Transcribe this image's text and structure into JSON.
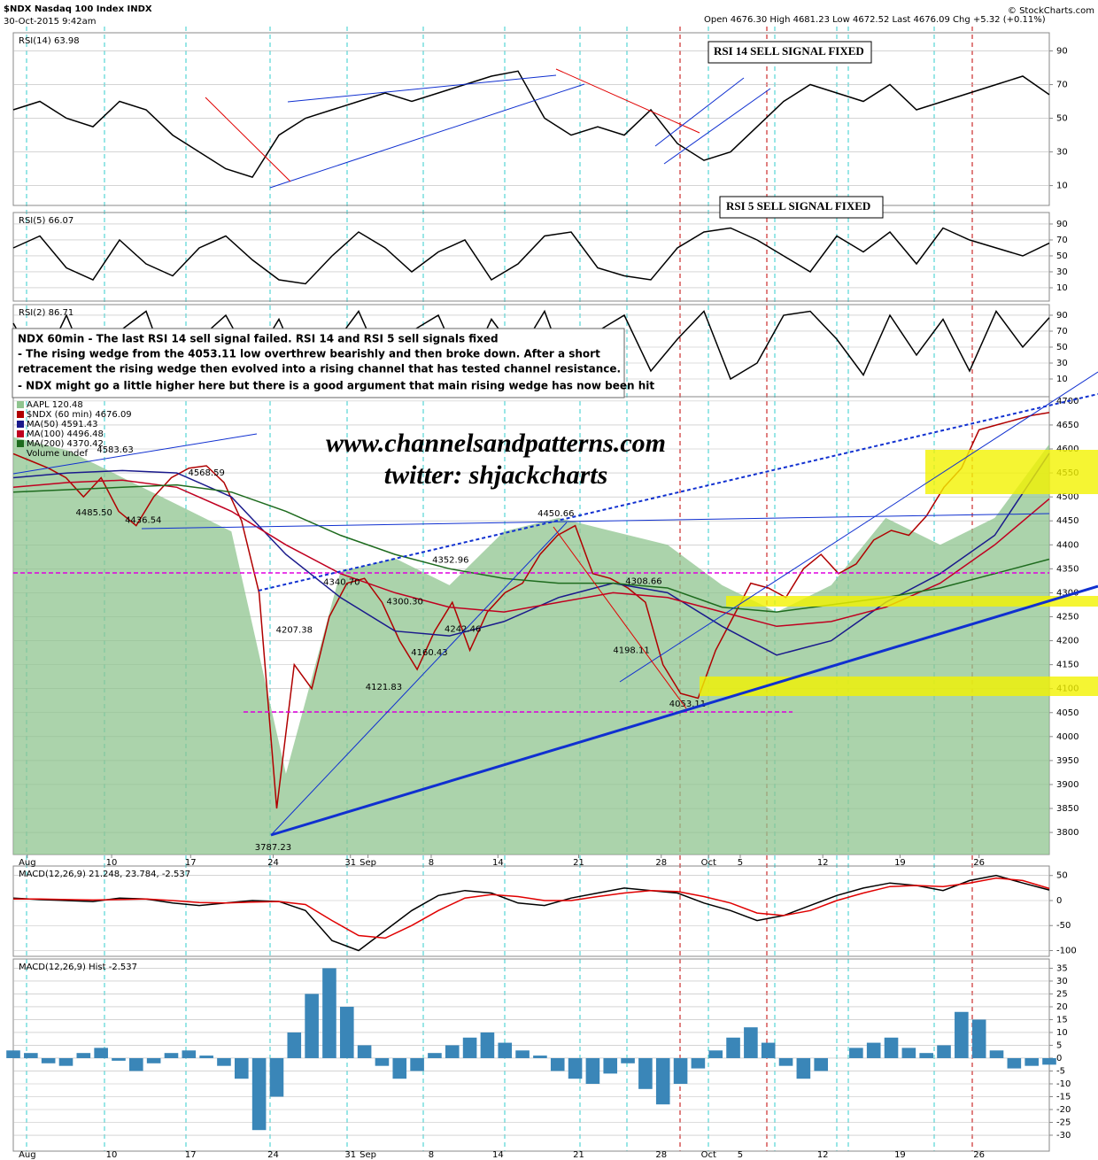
{
  "header": {
    "title": "$NDX Nasdaq 100 Index INDX",
    "timestamp": "30-Oct-2015 9:42am",
    "quote": "Open 4676.30  High 4681.23  Low 4672.52  Last 4676.09  Chg +5.32 (+0.11%)",
    "brand": "© StockCharts.com"
  },
  "notes": {
    "rsi14": "RSI 14 SELL SIGNAL FIXED",
    "rsi5": "RSI 5 SELL SIGNAL FIXED",
    "box": [
      "NDX 60min - The last RSI 14 sell signal failed. RSI 14 and RSI 5 sell signals fixed",
      "- The rising wedge from the 4053.11 low overthrew bearishly and then broke down. After a short",
      "retracement the rising wedge then evolved into a rising channel that has tested channel resistance.",
      "- NDX might go a little higher here but there is a good argument that main rising wedge has now been hit"
    ],
    "website": "www.channelsandpatterns.com",
    "twitter": "twitter: shjackcharts"
  },
  "chart_data": [
    {
      "type": "line",
      "title": "RSI(14) 63.98",
      "color": "#000000",
      "ylim": [
        -1.8,
        100.8
      ],
      "yticks": [
        10,
        30,
        50,
        70,
        90
      ],
      "grid": true,
      "values": [
        55,
        60,
        50,
        45,
        60,
        55,
        40,
        30,
        20,
        15,
        40,
        50,
        55,
        60,
        65,
        60,
        65,
        70,
        75,
        78,
        50,
        40,
        45,
        40,
        55,
        35,
        25,
        30,
        45,
        60,
        70,
        65,
        60,
        70,
        55,
        60,
        65,
        70,
        75,
        64
      ]
    },
    {
      "type": "line",
      "title": "RSI(5) 66.07",
      "color": "#000000",
      "ylim": [
        -6.7,
        104.4
      ],
      "yticks": [
        10,
        30,
        50,
        70,
        90
      ],
      "grid": true,
      "values": [
        60,
        75,
        35,
        20,
        70,
        40,
        25,
        60,
        75,
        45,
        20,
        15,
        50,
        80,
        60,
        30,
        55,
        70,
        20,
        40,
        75,
        80,
        35,
        25,
        20,
        60,
        80,
        85,
        70,
        50,
        30,
        75,
        55,
        80,
        40,
        85,
        70,
        60,
        50,
        66
      ]
    },
    {
      "type": "line",
      "title": "RSI(2) 86.71",
      "color": "#000000",
      "ylim": [
        -12.2,
        103.3
      ],
      "yticks": [
        10,
        30,
        50,
        70,
        90
      ],
      "grid": true,
      "values": [
        80,
        20,
        90,
        10,
        70,
        95,
        5,
        60,
        90,
        30,
        85,
        10,
        50,
        95,
        20,
        70,
        90,
        15,
        85,
        40,
        95,
        5,
        70,
        90,
        20,
        60,
        95,
        10,
        30,
        90,
        95,
        60,
        15,
        90,
        40,
        85,
        20,
        95,
        50,
        87
      ]
    },
    {
      "type": "line",
      "ylim": [
        3754,
        4709
      ],
      "y2lim": [
        90,
        124
      ],
      "grid": true,
      "xlim": [
        0,
        59
      ],
      "yticks": [
        3800,
        3850,
        3900,
        3950,
        4000,
        4050,
        4100,
        4150,
        4200,
        4250,
        4300,
        4350,
        4400,
        4450,
        4500,
        4550,
        4600,
        4650,
        4700
      ],
      "xticks": [
        {
          "value": 0.8,
          "label": "Aug"
        },
        {
          "value": 5.6,
          "label": "10"
        },
        {
          "value": 10.1,
          "label": "17"
        },
        {
          "value": 14.8,
          "label": "24"
        },
        {
          "value": 19.2,
          "label": "31"
        },
        {
          "value": 20.2,
          "label": "Sep"
        },
        {
          "value": 23.8,
          "label": "8"
        },
        {
          "value": 27.6,
          "label": "14"
        },
        {
          "value": 32.2,
          "label": "21"
        },
        {
          "value": 36.9,
          "label": "28"
        },
        {
          "value": 39.6,
          "label": "Oct"
        },
        {
          "value": 41.4,
          "label": "5"
        },
        {
          "value": 46.1,
          "label": "12"
        },
        {
          "value": 50.5,
          "label": "19"
        },
        {
          "value": 55.0,
          "label": "26"
        }
      ],
      "series": [
        {
          "name": "AAPL 120.48",
          "color": "#8fc48f",
          "axis": "y2",
          "style": "area",
          "values": [
            121,
            120,
            118,
            116,
            114,
            96,
            111,
            112,
            110,
            114,
            115,
            114,
            113,
            110,
            108,
            110,
            115,
            113,
            115,
            120.48
          ]
        },
        {
          "name": "$NDX (60 min) 4676.09",
          "color": "#b00000",
          "values": [
            4590,
            4575,
            4560,
            4540,
            4500,
            4540,
            4470,
            4440,
            4500,
            4540,
            4560,
            4565,
            4530,
            4450,
            4300,
            3850,
            4150,
            4100,
            4250,
            4320,
            4330,
            4280,
            4200,
            4140,
            4220,
            4280,
            4180,
            4260,
            4300,
            4320,
            4380,
            4420,
            4440,
            4340,
            4330,
            4310,
            4280,
            4150,
            4090,
            4080,
            4180,
            4250,
            4320,
            4310,
            4290,
            4350,
            4380,
            4340,
            4360,
            4410,
            4430,
            4420,
            4460,
            4520,
            4560,
            4640,
            4650,
            4660,
            4670,
            4676
          ]
        },
        {
          "name": "MA(50) 4591.43",
          "color": "#1a1a8c",
          "values": [
            4540,
            4550,
            4555,
            4550,
            4500,
            4380,
            4290,
            4220,
            4210,
            4240,
            4290,
            4320,
            4300,
            4230,
            4170,
            4200,
            4280,
            4340,
            4420,
            4591
          ]
        },
        {
          "name": "MA(100) 4496.48",
          "color": "#c00020",
          "values": [
            4520,
            4530,
            4535,
            4520,
            4470,
            4400,
            4340,
            4300,
            4270,
            4260,
            4280,
            4300,
            4290,
            4260,
            4230,
            4240,
            4270,
            4320,
            4400,
            4496
          ]
        },
        {
          "name": "MA(200) 4370.42",
          "color": "#1e6b1e",
          "values": [
            4510,
            4515,
            4520,
            4525,
            4510,
            4470,
            4420,
            4380,
            4350,
            4330,
            4320,
            4320,
            4310,
            4270,
            4260,
            4275,
            4290,
            4310,
            4340,
            4370
          ]
        }
      ],
      "legend_texts": [
        "Volume undef"
      ],
      "point_labels": [
        {
          "x": 5.8,
          "value": 4583.63
        },
        {
          "x": 4.6,
          "value": 4485.5,
          "label": "4485.50"
        },
        {
          "x": 7.4,
          "value": 4436.54
        },
        {
          "x": 11.0,
          "value": 4568.59
        },
        {
          "x": 30.9,
          "value": 4450.66
        },
        {
          "x": 18.7,
          "value": 4340.7,
          "label": "4340.70"
        },
        {
          "x": 24.9,
          "value": 4352.96
        },
        {
          "x": 22.3,
          "value": 4300.3,
          "label": "4300.30"
        },
        {
          "x": 16.0,
          "value": 4207.38
        },
        {
          "x": 25.6,
          "value": 4242.46
        },
        {
          "x": 35.9,
          "value": 4308.66
        },
        {
          "x": 35.2,
          "value": 4198.11
        },
        {
          "x": 23.7,
          "value": 4160.43
        },
        {
          "x": 21.1,
          "value": 4121.83
        },
        {
          "x": 38.4,
          "value": 4053.11
        },
        {
          "x": 14.8,
          "value": 3787.23
        }
      ]
    },
    {
      "type": "line",
      "title": "MACD(12,26,9) 21.248, 23.784, -2.537",
      "ylim": [
        -111.5,
        69
      ],
      "yticks": [
        -100,
        -50,
        0,
        50
      ],
      "grid": true,
      "series": [
        {
          "color": "#000000",
          "values": [
            5,
            2,
            0,
            -2,
            5,
            3,
            -5,
            -10,
            -5,
            0,
            -2,
            -20,
            -80,
            -100,
            -60,
            -20,
            10,
            20,
            15,
            -5,
            -10,
            5,
            15,
            25,
            20,
            15,
            -5,
            -20,
            -40,
            -30,
            -10,
            10,
            25,
            35,
            30,
            20,
            40,
            50,
            35,
            21
          ]
        },
        {
          "color": "#e00000",
          "values": [
            3,
            3,
            2,
            1,
            2,
            3,
            0,
            -4,
            -5,
            -3,
            -2,
            -8,
            -40,
            -70,
            -75,
            -50,
            -20,
            5,
            12,
            8,
            0,
            0,
            8,
            15,
            20,
            18,
            8,
            -5,
            -25,
            -30,
            -20,
            0,
            15,
            28,
            30,
            28,
            35,
            45,
            40,
            24
          ]
        }
      ]
    },
    {
      "type": "bar",
      "title": "MACD(12,26,9) Hist -2.537",
      "color": "#3a86b8",
      "ylim": [
        -36.2,
        38.6
      ],
      "grid": true,
      "yticks": [
        -30,
        -25,
        -20,
        -15,
        -10,
        -5,
        0,
        5,
        10,
        15,
        20,
        25,
        30,
        35
      ],
      "values": [
        3,
        2,
        -2,
        -3,
        2,
        4,
        -1,
        -5,
        -2,
        2,
        3,
        1,
        -3,
        -8,
        -28,
        -15,
        10,
        25,
        35,
        20,
        5,
        -3,
        -8,
        -5,
        2,
        5,
        8,
        10,
        6,
        3,
        1,
        -5,
        -8,
        -10,
        -6,
        -2,
        -12,
        -18,
        -10,
        -4,
        3,
        8,
        12,
        6,
        -3,
        -8,
        -5,
        0,
        4,
        6,
        8,
        4,
        2,
        5,
        18,
        15,
        3,
        -4,
        -3,
        -2.537
      ]
    }
  ]
}
